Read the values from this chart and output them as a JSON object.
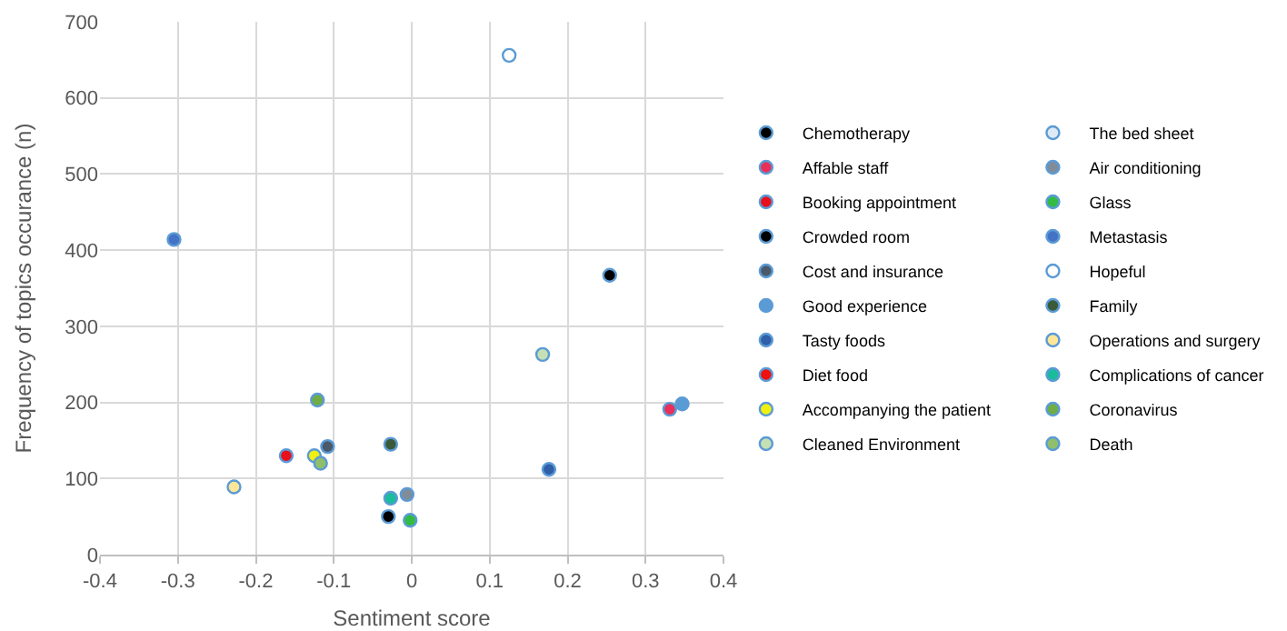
{
  "chart_data": {
    "type": "scatter",
    "xlabel": "Sentiment score",
    "ylabel": "Frequency of topics occurance (n)",
    "xlim": [
      -0.4,
      0.4
    ],
    "xticks": [
      -0.4,
      -0.3,
      -0.2,
      -0.1,
      0,
      0.1,
      0.2,
      0.3,
      0.4
    ],
    "ylim": [
      0,
      700
    ],
    "yticks": [
      0,
      100,
      200,
      300,
      400,
      500,
      600,
      700
    ],
    "grid": true,
    "legend": "right",
    "marker": "circle",
    "series": [
      {
        "name": "Chemotherapy",
        "color": "#000000",
        "x": [
          0.254
        ],
        "values": [
          367
        ]
      },
      {
        "name": "Affable staff",
        "color": "#e8305a",
        "x": [
          0.331
        ],
        "values": [
          191
        ]
      },
      {
        "name": "Booking appointment",
        "color": "#e8101c",
        "x": [
          -0.161
        ],
        "values": [
          130
        ]
      },
      {
        "name": "Crowded room",
        "color": "#000000",
        "x": [
          -0.03
        ],
        "values": [
          50
        ]
      },
      {
        "name": "Cost and insurance",
        "color": "#4a5a6a",
        "x": [
          -0.108
        ],
        "values": [
          142
        ]
      },
      {
        "name": "Good experience",
        "color": "#5b9bd5",
        "x": [
          0.347
        ],
        "values": [
          198
        ]
      },
      {
        "name": "Tasty foods",
        "color": "#2e5fa8",
        "x": [
          0.176
        ],
        "values": [
          112
        ]
      },
      {
        "name": "Diet food",
        "color": "#ee1111",
        "x": [
          null
        ],
        "values": [
          null
        ]
      },
      {
        "name": "Accompanying the patient",
        "color": "#f0f010",
        "x": [
          -0.125
        ],
        "values": [
          130
        ]
      },
      {
        "name": "Cleaned Environment",
        "color": "#c5e0b4",
        "x": [
          0.168
        ],
        "values": [
          263
        ]
      },
      {
        "name": "The bed sheet",
        "color": "#deebf7",
        "x": [
          null
        ],
        "values": [
          null
        ]
      },
      {
        "name": "Air conditioning",
        "color": "#7f8c99",
        "x": [
          -0.006
        ],
        "values": [
          79
        ]
      },
      {
        "name": "Glass",
        "color": "#33bb44",
        "x": [
          -0.002
        ],
        "values": [
          45
        ]
      },
      {
        "name": "Metastasis",
        "color": "#4472c4",
        "x": [
          -0.305
        ],
        "values": [
          414
        ]
      },
      {
        "name": "Hopeful",
        "color": "#ffffff",
        "x": [
          0.125
        ],
        "values": [
          656
        ]
      },
      {
        "name": "Family",
        "color": "#3a5a3a",
        "x": [
          -0.027
        ],
        "values": [
          145
        ]
      },
      {
        "name": "Operations and surgery",
        "color": "#ffe699",
        "x": [
          -0.228
        ],
        "values": [
          89
        ]
      },
      {
        "name": "Complications of cancer",
        "color": "#1abc9c",
        "x": [
          -0.027
        ],
        "values": [
          74
        ]
      },
      {
        "name": "Coronavirus",
        "color": "#70ad47",
        "x": [
          -0.121
        ],
        "values": [
          203
        ]
      },
      {
        "name": "Death",
        "color": "#8fbf6a",
        "x": [
          -0.117
        ],
        "values": [
          120
        ]
      }
    ]
  }
}
